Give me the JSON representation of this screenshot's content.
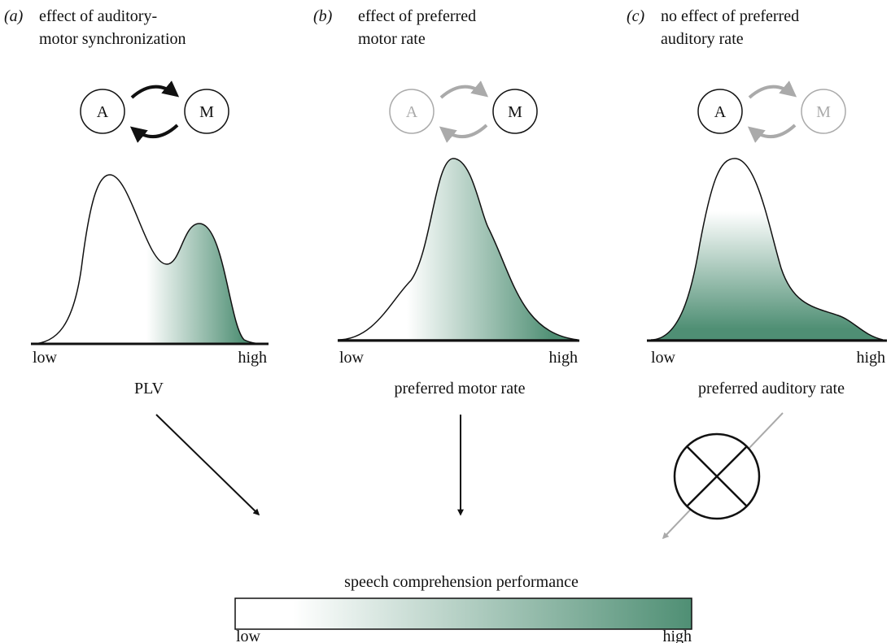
{
  "panels": [
    {
      "label": "(a)",
      "title": [
        "effect of auditory-",
        "motor synchronization"
      ],
      "nodes": [
        "A",
        "M"
      ],
      "low": "low",
      "high": "high",
      "xlabel": "PLV"
    },
    {
      "label": "(b)",
      "title": [
        "effect of preferred",
        "motor rate"
      ],
      "nodes": [
        "A",
        "M"
      ],
      "low": "low",
      "high": "high",
      "xlabel": "preferred motor rate"
    },
    {
      "label": "(c)",
      "title": [
        "no effect of preferred",
        "auditory rate"
      ],
      "nodes": [
        "A",
        "M"
      ],
      "low": "low",
      "high": "high",
      "xlabel": "preferred auditory rate"
    }
  ],
  "outcome": {
    "title": "speech comprehension performance",
    "low": "low",
    "high": "high"
  }
}
